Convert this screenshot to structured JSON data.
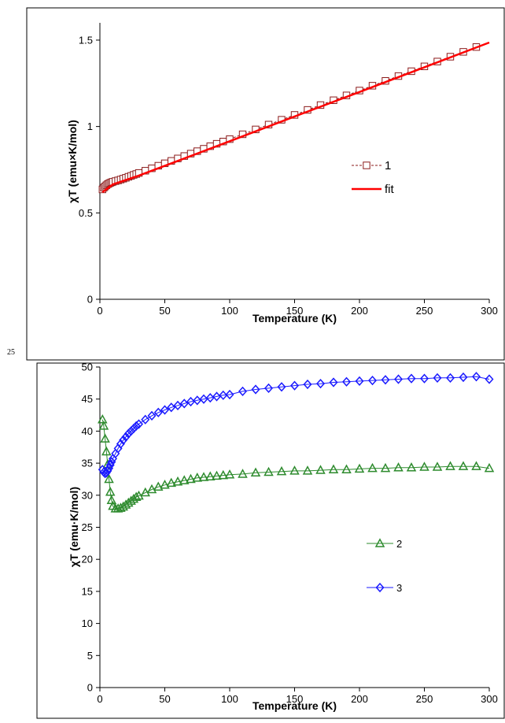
{
  "page_number": "25",
  "colors": {
    "frame": "#000000",
    "series_1": "#8b1a1a",
    "fit": "#ff0000",
    "series_2": "#2e8b2e",
    "series_3": "#1a1aff"
  },
  "chart_data": [
    {
      "type": "scatter",
      "title": "",
      "xlabel": "Temperature (K)",
      "ylabel": "χT (emu×K/mol)",
      "xlim": [
        0,
        300
      ],
      "ylim": [
        0,
        1.6
      ],
      "xticks": [
        "0",
        "50",
        "100",
        "150",
        "200",
        "250",
        "300"
      ],
      "yticks": [
        "0",
        "0.5",
        "1",
        "1.5"
      ],
      "grid": false,
      "legend": "center-right",
      "series": [
        {
          "name": "1",
          "marker": "square-open",
          "line": "dashed",
          "color": "#8b1a1a",
          "points": [
            [
              2,
              0.636
            ],
            [
              3,
              0.646
            ],
            [
              4,
              0.653
            ],
            [
              5,
              0.66
            ],
            [
              6,
              0.666
            ],
            [
              7,
              0.67
            ],
            [
              8,
              0.674
            ],
            [
              9,
              0.677
            ],
            [
              10,
              0.68
            ],
            [
              12,
              0.684
            ],
            [
              14,
              0.688
            ],
            [
              16,
              0.693
            ],
            [
              18,
              0.698
            ],
            [
              20,
              0.703
            ],
            [
              22,
              0.709
            ],
            [
              24,
              0.714
            ],
            [
              26,
              0.72
            ],
            [
              28,
              0.725
            ],
            [
              30,
              0.731
            ],
            [
              35,
              0.744
            ],
            [
              40,
              0.758
            ],
            [
              45,
              0.773
            ],
            [
              50,
              0.787
            ],
            [
              55,
              0.801
            ],
            [
              60,
              0.815
            ],
            [
              65,
              0.829
            ],
            [
              70,
              0.843
            ],
            [
              75,
              0.857
            ],
            [
              80,
              0.871
            ],
            [
              85,
              0.886
            ],
            [
              90,
              0.9
            ],
            [
              95,
              0.913
            ],
            [
              100,
              0.927
            ],
            [
              110,
              0.955
            ],
            [
              120,
              0.983
            ],
            [
              130,
              1.011
            ],
            [
              140,
              1.039
            ],
            [
              150,
              1.067
            ],
            [
              160,
              1.096
            ],
            [
              170,
              1.124
            ],
            [
              180,
              1.152
            ],
            [
              190,
              1.18
            ],
            [
              200,
              1.208
            ],
            [
              210,
              1.236
            ],
            [
              220,
              1.264
            ],
            [
              230,
              1.292
            ],
            [
              240,
              1.32
            ],
            [
              250,
              1.348
            ],
            [
              260,
              1.376
            ],
            [
              270,
              1.404
            ],
            [
              280,
              1.432
            ],
            [
              290,
              1.46
            ]
          ]
        },
        {
          "name": "fit",
          "marker": "none",
          "line": "solid",
          "color": "#ff0000",
          "points": [
            [
              2,
              0.62
            ],
            [
              10,
              0.665
            ],
            [
              30,
              0.716
            ],
            [
              60,
              0.801
            ],
            [
              100,
              0.915
            ],
            [
              150,
              1.058
            ],
            [
              200,
              1.2
            ],
            [
              250,
              1.343
            ],
            [
              300,
              1.486
            ]
          ]
        }
      ]
    },
    {
      "type": "scatter",
      "title": "",
      "xlabel": "Temperature (K)",
      "ylabel": "χT (emu·K/mol)",
      "xlim": [
        0,
        300
      ],
      "ylim": [
        0,
        50
      ],
      "xticks": [
        "0",
        "50",
        "100",
        "150",
        "200",
        "250",
        "300"
      ],
      "yticks": [
        "0",
        "5",
        "10",
        "15",
        "20",
        "25",
        "30",
        "35",
        "40",
        "45",
        "50"
      ],
      "grid": false,
      "legend": "center-right",
      "series": [
        {
          "name": "2",
          "marker": "triangle-open",
          "line": "solid",
          "color": "#2e8b2e",
          "points": [
            [
              2,
              41.8
            ],
            [
              3,
              40.8
            ],
            [
              4,
              38.8
            ],
            [
              5,
              36.8
            ],
            [
              6,
              34.8
            ],
            [
              7,
              32.5
            ],
            [
              8,
              30.5
            ],
            [
              9,
              29.2
            ],
            [
              10,
              28.3
            ],
            [
              12,
              27.9
            ],
            [
              14,
              27.9
            ],
            [
              16,
              28.0
            ],
            [
              18,
              28.2
            ],
            [
              20,
              28.5
            ],
            [
              22,
              28.8
            ],
            [
              24,
              29.1
            ],
            [
              26,
              29.4
            ],
            [
              28,
              29.7
            ],
            [
              30,
              29.9
            ],
            [
              35,
              30.4
            ],
            [
              40,
              30.9
            ],
            [
              45,
              31.3
            ],
            [
              50,
              31.6
            ],
            [
              55,
              31.9
            ],
            [
              60,
              32.1
            ],
            [
              65,
              32.3
            ],
            [
              70,
              32.5
            ],
            [
              75,
              32.7
            ],
            [
              80,
              32.8
            ],
            [
              85,
              32.9
            ],
            [
              90,
              33.0
            ],
            [
              95,
              33.1
            ],
            [
              100,
              33.2
            ],
            [
              110,
              33.3
            ],
            [
              120,
              33.5
            ],
            [
              130,
              33.6
            ],
            [
              140,
              33.7
            ],
            [
              150,
              33.8
            ],
            [
              160,
              33.8
            ],
            [
              170,
              33.9
            ],
            [
              180,
              34.0
            ],
            [
              190,
              34.0
            ],
            [
              200,
              34.1
            ],
            [
              210,
              34.2
            ],
            [
              220,
              34.2
            ],
            [
              230,
              34.3
            ],
            [
              240,
              34.3
            ],
            [
              250,
              34.4
            ],
            [
              260,
              34.4
            ],
            [
              270,
              34.5
            ],
            [
              280,
              34.5
            ],
            [
              290,
              34.5
            ],
            [
              300,
              34.2
            ]
          ]
        },
        {
          "name": "3",
          "marker": "diamond-open",
          "line": "solid",
          "color": "#1a1aff",
          "points": [
            [
              2,
              34.0
            ],
            [
              3,
              33.6
            ],
            [
              4,
              33.4
            ],
            [
              5,
              33.5
            ],
            [
              6,
              33.8
            ],
            [
              7,
              34.2
            ],
            [
              8,
              34.7
            ],
            [
              9,
              35.2
            ],
            [
              10,
              35.7
            ],
            [
              12,
              36.5
            ],
            [
              14,
              37.3
            ],
            [
              16,
              38.0
            ],
            [
              18,
              38.6
            ],
            [
              20,
              39.1
            ],
            [
              22,
              39.6
            ],
            [
              24,
              40.0
            ],
            [
              26,
              40.4
            ],
            [
              28,
              40.8
            ],
            [
              30,
              41.1
            ],
            [
              35,
              41.8
            ],
            [
              40,
              42.4
            ],
            [
              45,
              42.9
            ],
            [
              50,
              43.3
            ],
            [
              55,
              43.7
            ],
            [
              60,
              44.0
            ],
            [
              65,
              44.3
            ],
            [
              70,
              44.6
            ],
            [
              75,
              44.8
            ],
            [
              80,
              45.0
            ],
            [
              85,
              45.2
            ],
            [
              90,
              45.4
            ],
            [
              95,
              45.6
            ],
            [
              100,
              45.7
            ],
            [
              110,
              46.2
            ],
            [
              120,
              46.5
            ],
            [
              130,
              46.7
            ],
            [
              140,
              46.9
            ],
            [
              150,
              47.1
            ],
            [
              160,
              47.3
            ],
            [
              170,
              47.4
            ],
            [
              180,
              47.6
            ],
            [
              190,
              47.7
            ],
            [
              200,
              47.8
            ],
            [
              210,
              47.9
            ],
            [
              220,
              48.0
            ],
            [
              230,
              48.1
            ],
            [
              240,
              48.2
            ],
            [
              250,
              48.2
            ],
            [
              260,
              48.3
            ],
            [
              270,
              48.3
            ],
            [
              280,
              48.4
            ],
            [
              290,
              48.5
            ],
            [
              300,
              48.1
            ]
          ]
        }
      ]
    }
  ]
}
